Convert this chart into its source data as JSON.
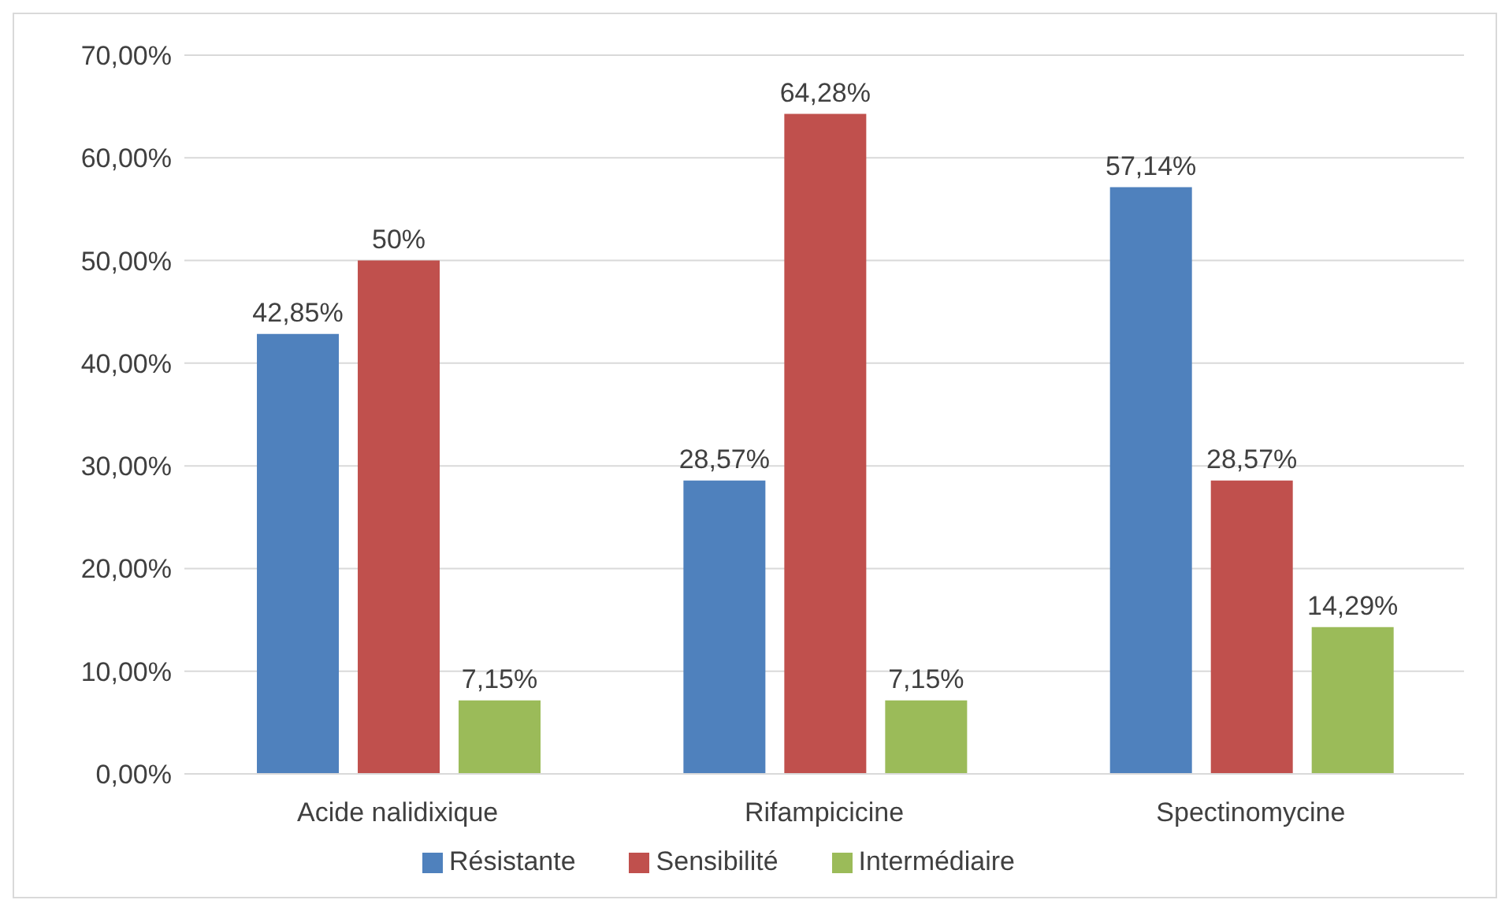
{
  "chart_data": {
    "type": "bar",
    "categories": [
      "Acide nalidixique",
      "Rifampicicine",
      "Spectinomycine"
    ],
    "series": [
      {
        "name": "Résistante",
        "color": "#4f81bd",
        "values": [
          42.85,
          28.57,
          57.14
        ],
        "value_labels": [
          "42,85%",
          "28,57%",
          "57,14%"
        ]
      },
      {
        "name": "Sensibilité",
        "color": "#c0504d",
        "values": [
          50,
          64.28,
          28.57
        ],
        "value_labels": [
          "50%",
          "64,28%",
          "28,57%"
        ]
      },
      {
        "name": "Intermédiaire",
        "color": "#9bbb59",
        "values": [
          7.15,
          7.15,
          14.29
        ],
        "value_labels": [
          "7,15%",
          "7,15%",
          "14,29%"
        ]
      }
    ],
    "ylim": [
      0,
      70
    ],
    "yticks": [
      {
        "value": 0,
        "label": "0,00%"
      },
      {
        "value": 10,
        "label": "10,00%"
      },
      {
        "value": 20,
        "label": "20,00%"
      },
      {
        "value": 30,
        "label": "30,00%"
      },
      {
        "value": 40,
        "label": "40,00%"
      },
      {
        "value": 50,
        "label": "50,00%"
      },
      {
        "value": 60,
        "label": "60,00%"
      },
      {
        "value": 70,
        "label": "70,00%"
      }
    ],
    "grid": "y",
    "legend": "bottom"
  }
}
